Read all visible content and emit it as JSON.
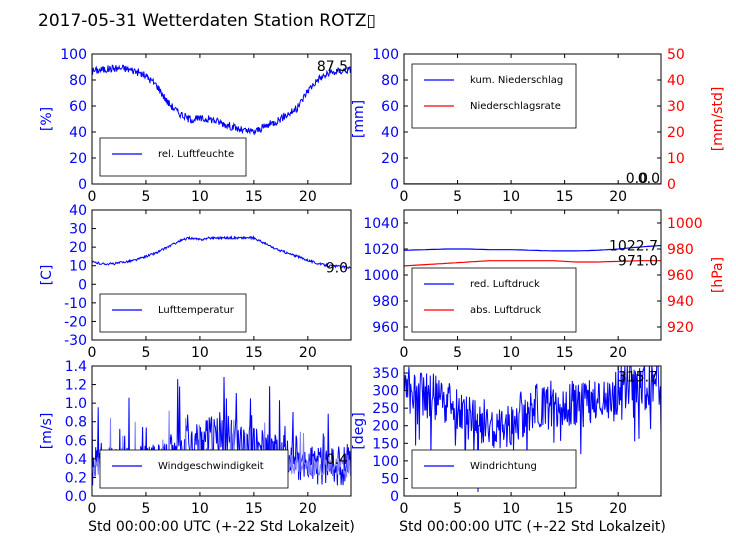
{
  "title": "2017-05-31 Wetterdaten Station ROTZ▯",
  "colors": {
    "primary": "#0000ff",
    "secondary": "#ff0000",
    "alt_series": "#8080ff"
  },
  "chart_data": [
    {
      "type": "line",
      "xlabel": "",
      "ylabel": "[%]",
      "xlim": [
        0,
        24
      ],
      "ylim": [
        0,
        100
      ],
      "xticks": [
        0,
        5,
        10,
        15,
        20
      ],
      "yticks": [
        0,
        20,
        40,
        60,
        80,
        100
      ],
      "legend_position": "lower-left",
      "annotation": "87.5",
      "series": [
        {
          "name": "rel. Luftfeuchte",
          "color": "#0000ff",
          "noise": 3,
          "x": [
            0,
            1,
            2,
            3,
            4,
            5,
            6,
            7,
            8,
            9,
            10,
            11,
            12,
            13,
            14,
            15,
            16,
            17,
            18,
            19,
            20,
            21,
            22,
            23,
            24
          ],
          "y": [
            87,
            88,
            89,
            89,
            87,
            83,
            76,
            63,
            55,
            50,
            50,
            50,
            47,
            44,
            41,
            40,
            44,
            48,
            53,
            58,
            72,
            81,
            85,
            87,
            88
          ]
        }
      ]
    },
    {
      "type": "line",
      "xlabel": "",
      "ylabel": "[mm]",
      "ylabel_right": "[mm/std]",
      "xlim": [
        0,
        24
      ],
      "ylim": [
        0,
        100
      ],
      "ylim_right": [
        0,
        50
      ],
      "xticks": [
        0,
        5,
        10,
        15,
        20
      ],
      "yticks": [
        0,
        20,
        40,
        60,
        80,
        100
      ],
      "yticks_right": [
        0,
        10,
        20,
        30,
        40,
        50
      ],
      "legend_position": "upper-left",
      "annotation": "0.0",
      "annotation2": "0.0",
      "series": [
        {
          "name": "kum. Niederschlag",
          "color": "#0000ff",
          "axis": "left",
          "x": [
            0,
            24
          ],
          "y": [
            0,
            0
          ]
        },
        {
          "name": "Niederschlagsrate",
          "color": "#ff0000",
          "axis": "right",
          "x": [
            0,
            24
          ],
          "y": [
            0,
            0
          ]
        }
      ]
    },
    {
      "type": "line",
      "xlabel": "",
      "ylabel": "[C]",
      "xlim": [
        0,
        24
      ],
      "ylim": [
        -30,
        40
      ],
      "xticks": [
        0,
        5,
        10,
        15,
        20
      ],
      "yticks": [
        -30,
        -20,
        -10,
        0,
        10,
        20,
        30,
        40
      ],
      "legend_position": "lower-left",
      "annotation": "9.0",
      "series": [
        {
          "name": "Lufttemperatur",
          "color": "#0000ff",
          "noise": 0.6,
          "x": [
            0,
            1,
            2,
            3,
            4,
            5,
            6,
            7,
            8,
            9,
            10,
            11,
            12,
            13,
            14,
            15,
            16,
            17,
            18,
            19,
            20,
            21,
            22,
            23,
            24
          ],
          "y": [
            12,
            11,
            11,
            12,
            13,
            15,
            17,
            20,
            23,
            25,
            24,
            25,
            25,
            25,
            25,
            25,
            22,
            19,
            17,
            15,
            13,
            11,
            10,
            9.5,
            9
          ]
        }
      ]
    },
    {
      "type": "line",
      "xlabel": "",
      "ylabel": "[hPa]",
      "ylabel_right": "[hPa]",
      "ylabel_left_shown": false,
      "xlim": [
        0,
        24
      ],
      "ylim": [
        950,
        1050
      ],
      "ylim_right": [
        910,
        1010
      ],
      "xticks": [
        0,
        5,
        10,
        15,
        20
      ],
      "yticks": [
        960,
        980,
        1000,
        1020,
        1040
      ],
      "yticks_right": [
        920,
        940,
        960,
        980,
        1000
      ],
      "legend_position": "lower-left",
      "annotation": "1022.7",
      "annotation2": "971.0",
      "series": [
        {
          "name": "red. Luftdruck",
          "color": "#0000ff",
          "axis": "left",
          "x": [
            0,
            2,
            4,
            6,
            8,
            10,
            12,
            14,
            16,
            18,
            20,
            22,
            24
          ],
          "y": [
            1019,
            1019.5,
            1020,
            1020,
            1019.5,
            1019.5,
            1019,
            1018.5,
            1018.5,
            1019,
            1020,
            1021.5,
            1022.7
          ]
        },
        {
          "name": "abs. Luftdruck",
          "color": "#ff0000",
          "axis": "right",
          "x": [
            0,
            2,
            4,
            6,
            8,
            10,
            12,
            14,
            16,
            18,
            20,
            22,
            24
          ],
          "y": [
            967,
            968,
            969,
            970,
            971,
            971,
            971,
            971,
            970,
            970,
            970.5,
            971,
            971
          ]
        }
      ]
    },
    {
      "type": "line",
      "xlabel": "Std 00:00:00 UTC (+-22 Std Lokalzeit)",
      "ylabel": "[m/s]",
      "xlim": [
        0,
        24
      ],
      "ylim": [
        0,
        1.4
      ],
      "xticks": [
        0,
        5,
        10,
        15,
        20
      ],
      "yticks": [
        0.0,
        0.2,
        0.4,
        0.6,
        0.8,
        1.0,
        1.2,
        1.4
      ],
      "legend_position": "lower-left",
      "annotation": "0.4",
      "series": [
        {
          "name": "Windgeschwindigkeit",
          "color": "#0000ff",
          "noise": 0.22,
          "x": [
            0,
            2,
            4,
            6,
            7,
            8,
            9,
            10,
            11,
            12,
            13,
            14,
            15,
            16,
            17,
            18,
            19,
            20,
            22,
            24
          ],
          "y": [
            0.3,
            0.35,
            0.3,
            0.35,
            0.4,
            0.55,
            0.6,
            0.6,
            0.65,
            0.65,
            0.6,
            0.55,
            0.55,
            0.5,
            0.45,
            0.45,
            0.4,
            0.35,
            0.3,
            0.35
          ]
        },
        {
          "name": "",
          "color": "#8080ff",
          "noise": 0.12,
          "x": [
            0,
            3,
            6,
            9,
            12,
            15,
            18,
            21,
            24
          ],
          "y": [
            0.3,
            0.3,
            0.35,
            0.4,
            0.4,
            0.4,
            0.35,
            0.3,
            0.3
          ]
        }
      ]
    },
    {
      "type": "line",
      "xlabel": "Std 00:00:00 UTC (+-22 Std Lokalzeit)",
      "ylabel": "[deg]",
      "xlim": [
        0,
        24
      ],
      "ylim": [
        0,
        370
      ],
      "xticks": [
        0,
        5,
        10,
        15,
        20
      ],
      "yticks": [
        0,
        50,
        100,
        150,
        200,
        250,
        300,
        350
      ],
      "legend_position": "lower-left",
      "annotation": "315.7",
      "series": [
        {
          "name": "Windrichtung",
          "color": "#0000ff",
          "noise": 70,
          "x": [
            0,
            2,
            4,
            6,
            8,
            10,
            12,
            14,
            16,
            18,
            19.5,
            20,
            22,
            24
          ],
          "y": [
            300,
            290,
            260,
            230,
            200,
            210,
            250,
            260,
            260,
            260,
            270,
            310,
            320,
            315
          ]
        }
      ]
    }
  ]
}
